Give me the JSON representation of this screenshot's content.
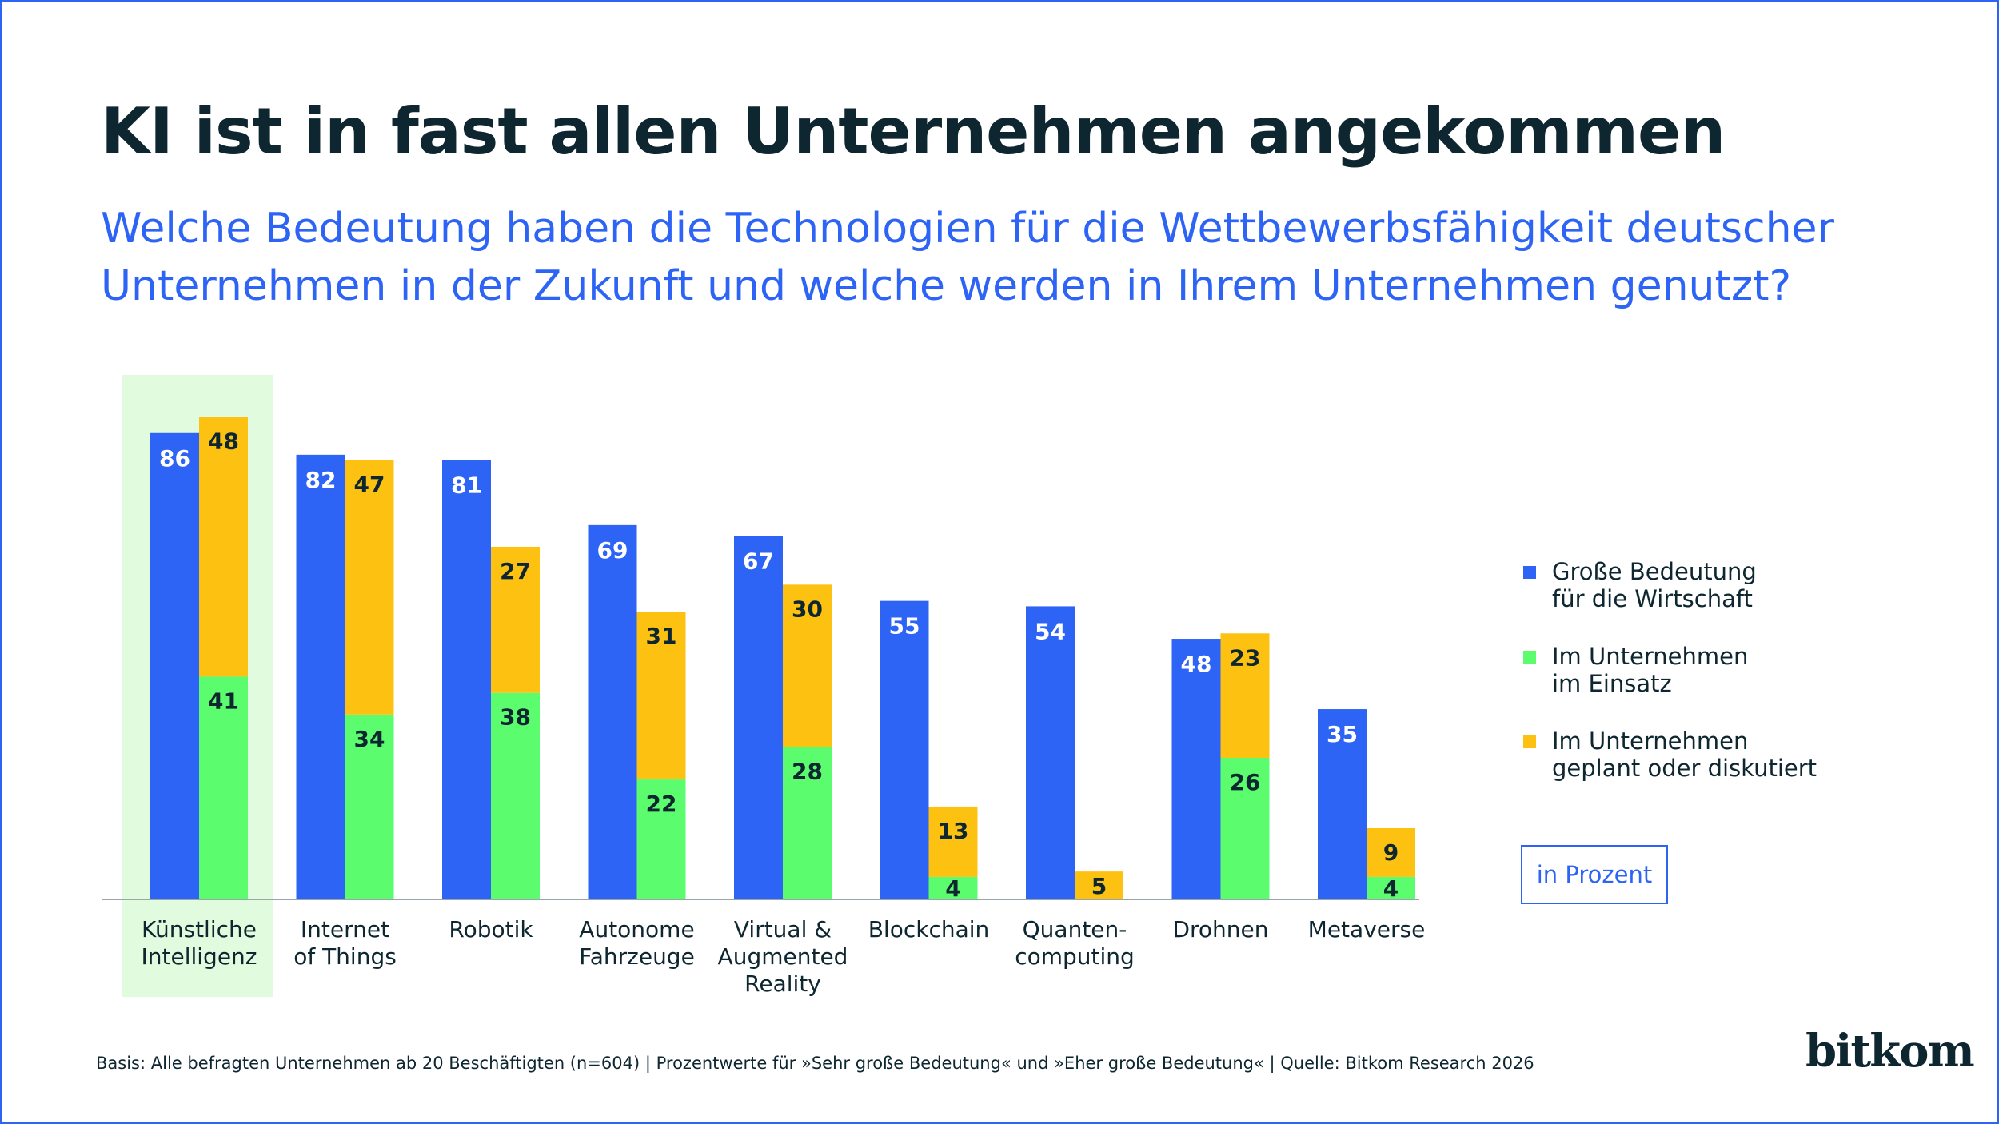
{
  "title": "KI ist in fast allen Unternehmen angekommen",
  "subtitle": "Welche Bedeutung haben die Technologien für die Wettbewerbsfähigkeit deutscher Unternehmen in der Zukunft und welche werden in Ihrem Unternehmen genutzt?",
  "unit_label": "in Prozent",
  "footer": "Basis: Alle befragten Unternehmen ab 20 Beschäftigten (n=604) | Prozentwerte für »Sehr große Bedeutung« und »Eher große Bedeutung« | Quelle: Bitkom Research 2026",
  "logo": "bitkom",
  "colors": {
    "blue": "#2d64f5",
    "green": "#5bfd6f",
    "yellow": "#fdc112",
    "highlight": "#e0fbdd",
    "text": "#0d2630"
  },
  "chart_data": {
    "type": "bar",
    "categories": [
      "Künstliche\nIntelligenz",
      "Internet\nof Things",
      "Robotik",
      "Autonome\nFahrzeuge",
      "Virtual &\nAugmented\nReality",
      "Blockchain",
      "Quanten-\ncomputing",
      "Drohnen",
      "Metaverse"
    ],
    "highlighted_category": "Künstliche\nIntelligenz",
    "series": [
      {
        "name": "Große Bedeutung\nfür die Wirtschaft",
        "color": "#2d64f5",
        "values": [
          86,
          82,
          81,
          69,
          67,
          55,
          54,
          48,
          35
        ],
        "stack": "a"
      },
      {
        "name": "Im Unternehmen\nim Einsatz",
        "color": "#5bfd6f",
        "values": [
          41,
          34,
          38,
          22,
          28,
          4,
          0,
          26,
          4
        ],
        "stack": "b"
      },
      {
        "name": "Im Unternehmen\ngeplant oder diskutiert",
        "color": "#fdc112",
        "values": [
          48,
          47,
          27,
          31,
          30,
          13,
          5,
          23,
          9
        ],
        "stack": "b"
      }
    ],
    "legend_position": "right",
    "grid": false,
    "ylim": [
      0,
      100
    ],
    "unit": "in Prozent"
  }
}
